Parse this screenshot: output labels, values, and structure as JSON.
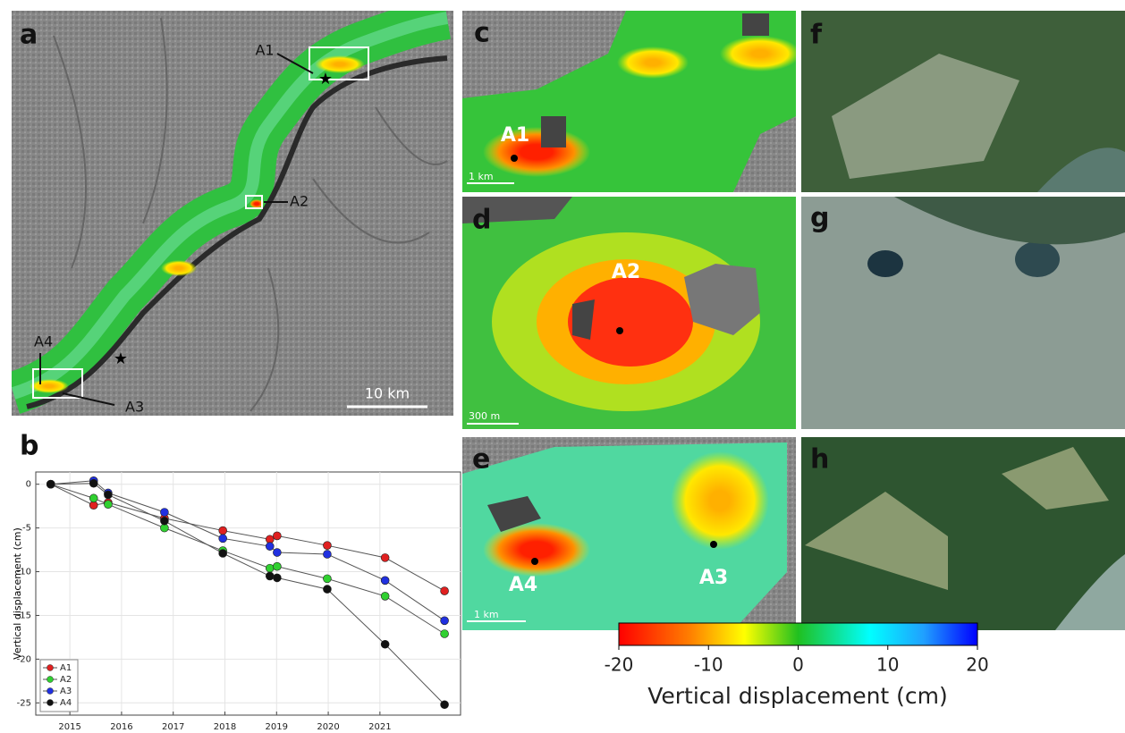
{
  "panels": {
    "a": {
      "label": "a",
      "annotations": [
        "A1",
        "A2",
        "A3",
        "A4"
      ],
      "scale_bar": "10 km"
    },
    "b": {
      "label": "b"
    },
    "c": {
      "label": "c",
      "annotations": [
        "A1"
      ],
      "scale_bar": "1 km"
    },
    "d": {
      "label": "d",
      "annotations": [
        "A2"
      ],
      "scale_bar": "300 m"
    },
    "e": {
      "label": "e",
      "annotations": [
        "A4",
        "A3"
      ],
      "scale_bar": "1 km"
    },
    "f": {
      "label": "f"
    },
    "g": {
      "label": "g"
    },
    "h": {
      "label": "h"
    }
  },
  "chart_data": {
    "type": "line",
    "ylabel": "Vertical displacement (cm)",
    "x": [
      2014.63,
      2015.46,
      2015.74,
      2016.83,
      2017.96,
      2018.87,
      2019.01,
      2019.98,
      2021.1,
      2022.25
    ],
    "xlim": [
      2014.34,
      2022.56
    ],
    "xticks": [
      2015,
      2016,
      2017,
      2018,
      2019,
      2020,
      2021
    ],
    "ylim": [
      -26.4,
      1.4
    ],
    "yticks": [
      0,
      -5,
      -10,
      -15,
      -20,
      -25
    ],
    "grid": true,
    "legend": "lower left",
    "series": [
      {
        "name": "A1",
        "color": "#e02020",
        "values": [
          0,
          -2.4,
          -2.1,
          -3.9,
          -5.3,
          -6.3,
          -5.9,
          -7.0,
          -8.4,
          -12.2
        ]
      },
      {
        "name": "A2",
        "color": "#30d030",
        "values": [
          0,
          -1.6,
          -2.3,
          -5.0,
          -7.6,
          -9.6,
          -9.4,
          -10.8,
          -12.8,
          -17.1
        ]
      },
      {
        "name": "A3",
        "color": "#2030e0",
        "values": [
          0,
          0.4,
          -1.0,
          -3.2,
          -6.2,
          -7.1,
          -7.8,
          -8.0,
          -11.0,
          -15.6
        ]
      },
      {
        "name": "A4",
        "color": "#111111",
        "values": [
          0,
          0.1,
          -1.2,
          -4.2,
          -7.9,
          -10.5,
          -10.7,
          -12.0,
          -18.3,
          -25.2
        ]
      }
    ]
  },
  "colorbar": {
    "label": "Vertical displacement (cm)",
    "lim": [
      -20,
      20
    ],
    "ticks": [
      -20,
      -10,
      0,
      10,
      20
    ]
  }
}
